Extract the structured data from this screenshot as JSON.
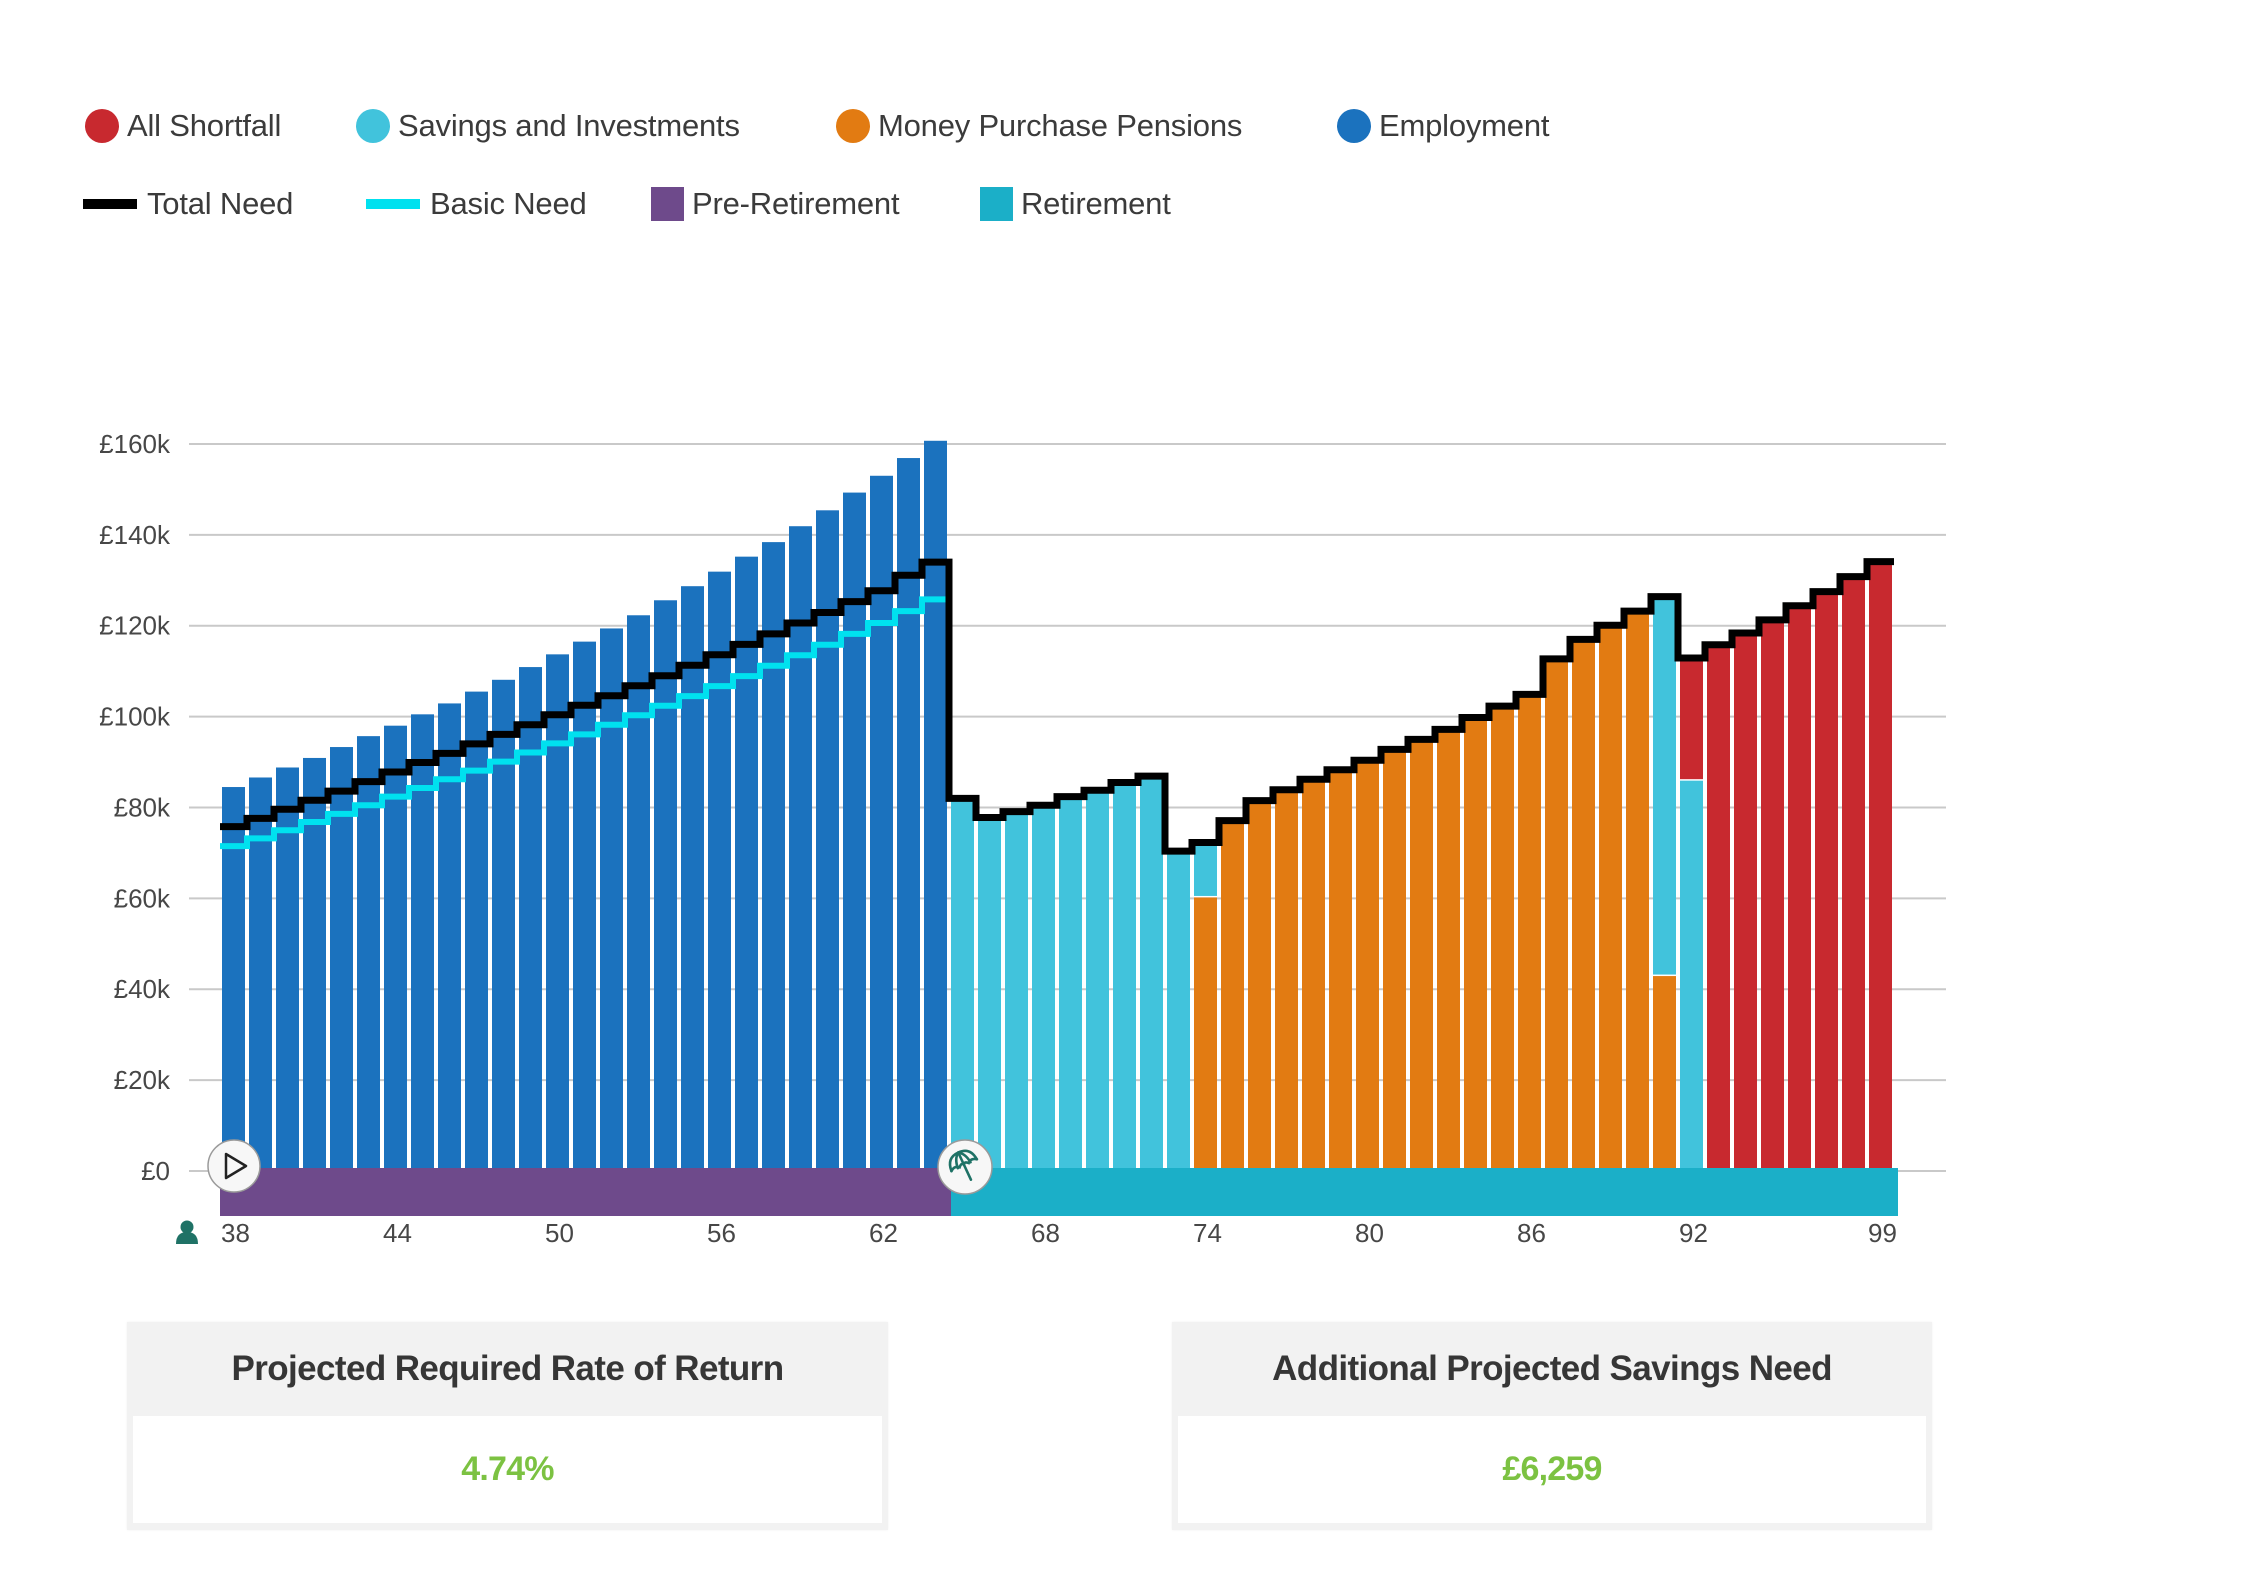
{
  "legend": {
    "row1": [
      {
        "label": "All Shortfall",
        "shape": "dot",
        "color": "#c8292f"
      },
      {
        "label": "Savings and Investments",
        "shape": "dot",
        "color": "#41c3dc"
      },
      {
        "label": "Money Purchase Pensions",
        "shape": "dot",
        "color": "#e27b12"
      },
      {
        "label": "Employment",
        "shape": "dot",
        "color": "#1b72be"
      }
    ],
    "row2": [
      {
        "label": "Total Need",
        "shape": "line",
        "color": "#000000"
      },
      {
        "label": "Basic Need",
        "shape": "line",
        "color": "#00e1ef"
      },
      {
        "label": "Pre-Retirement",
        "shape": "square",
        "color": "#6e4a8b"
      },
      {
        "label": "Retirement",
        "shape": "square",
        "color": "#1bafc8"
      }
    ]
  },
  "timeline": {
    "start_icon": "play-icon",
    "retirement_icon": "umbrella-icon",
    "person_icon": "person-icon",
    "pre_retirement": {
      "from_age": 38,
      "to_age": 64,
      "color": "#6e4a8b"
    },
    "retirement": {
      "from_age": 65,
      "to_age": 99,
      "color": "#1bafc8"
    }
  },
  "chart_data": {
    "type": "bar",
    "stacked": true,
    "title": "",
    "xlabel": "",
    "ylabel": "",
    "ylim": [
      0,
      160
    ],
    "y_unit": "£k",
    "y_ticks": [
      0,
      20,
      40,
      60,
      80,
      100,
      120,
      140,
      160
    ],
    "y_tick_labels": [
      "£0",
      "£20k",
      "£40k",
      "£60k",
      "£80k",
      "£100k",
      "£120k",
      "£140k",
      "£160k"
    ],
    "x_ticks": [
      38,
      44,
      50,
      56,
      62,
      68,
      74,
      80,
      86,
      92,
      99
    ],
    "grid": true,
    "legend_position": "top-left",
    "ages": [
      38,
      39,
      40,
      41,
      42,
      43,
      44,
      45,
      46,
      47,
      48,
      49,
      50,
      51,
      52,
      53,
      54,
      55,
      56,
      57,
      58,
      59,
      60,
      61,
      62,
      63,
      64,
      65,
      66,
      67,
      68,
      69,
      70,
      71,
      72,
      73,
      74,
      75,
      76,
      77,
      78,
      79,
      80,
      81,
      82,
      83,
      84,
      85,
      86,
      87,
      88,
      89,
      90,
      91,
      92,
      93,
      94,
      95,
      96,
      97,
      98,
      99
    ],
    "series": [
      {
        "name": "Employment",
        "color": "#1b72be",
        "values": [
          84.5,
          86.6,
          88.8,
          90.9,
          93.3,
          95.7,
          98.0,
          100.5,
          102.9,
          105.5,
          108.1,
          110.9,
          113.7,
          116.5,
          119.4,
          122.3,
          125.6,
          128.7,
          131.9,
          135.2,
          138.4,
          141.9,
          145.4,
          149.3,
          153.0,
          156.9,
          160.7,
          0,
          0,
          0,
          0,
          0,
          0,
          0,
          0,
          0,
          0,
          0,
          0,
          0,
          0,
          0,
          0,
          0,
          0,
          0,
          0,
          0,
          0,
          0,
          0,
          0,
          0,
          0,
          0,
          0,
          0,
          0,
          0,
          0,
          0,
          0
        ]
      },
      {
        "name": "Money Purchase Pensions",
        "color": "#e27b12",
        "values": [
          0,
          0,
          0,
          0,
          0,
          0,
          0,
          0,
          0,
          0,
          0,
          0,
          0,
          0,
          0,
          0,
          0,
          0,
          0,
          0,
          0,
          0,
          0,
          0,
          0,
          0,
          0,
          0,
          0,
          0,
          0,
          0,
          0,
          0,
          0,
          0,
          60.2,
          77.1,
          81.5,
          83.9,
          86.2,
          88.3,
          90.4,
          92.8,
          95.0,
          97.2,
          99.8,
          102.3,
          104.9,
          112.7,
          117.0,
          120.1,
          123.2,
          42.9,
          0,
          0,
          0,
          0,
          0,
          0,
          0,
          0
        ]
      },
      {
        "name": "Savings and Investments",
        "color": "#41c3dc",
        "values": [
          0,
          0,
          0,
          0,
          0,
          0,
          0,
          0,
          0,
          0,
          0,
          0,
          0,
          0,
          0,
          0,
          0,
          0,
          0,
          0,
          0,
          0,
          0,
          0,
          0,
          0,
          0,
          82.0,
          77.8,
          79.1,
          80.5,
          82.4,
          83.8,
          85.5,
          86.9,
          70.4,
          12.1,
          0,
          0,
          0,
          0,
          0,
          0,
          0,
          0,
          0,
          0,
          0,
          0,
          0,
          0,
          0,
          0,
          83.5,
          85.9,
          0,
          0,
          0,
          0,
          0,
          0,
          0
        ]
      },
      {
        "name": "All Shortfall",
        "color": "#c8292f",
        "values": [
          0,
          0,
          0,
          0,
          0,
          0,
          0,
          0,
          0,
          0,
          0,
          0,
          0,
          0,
          0,
          0,
          0,
          0,
          0,
          0,
          0,
          0,
          0,
          0,
          0,
          0,
          0,
          0,
          0,
          0,
          0,
          0,
          0,
          0,
          0,
          0,
          0,
          0,
          0,
          0,
          0,
          0,
          0,
          0,
          0,
          0,
          0,
          0,
          0,
          0,
          0,
          0,
          0,
          0,
          27.0,
          115.8,
          118.4,
          121.3,
          124.4,
          127.5,
          130.8,
          134.1
        ]
      }
    ],
    "lines": [
      {
        "name": "Total Need",
        "color": "#000000",
        "values": [
          75.8,
          77.6,
          79.6,
          81.6,
          83.6,
          85.7,
          87.8,
          89.9,
          91.9,
          94.0,
          96.1,
          98.2,
          100.4,
          102.5,
          104.6,
          106.8,
          109.0,
          111.3,
          113.6,
          115.9,
          118.2,
          120.6,
          122.9,
          125.3,
          127.7,
          131.1,
          134.0,
          82.0,
          77.8,
          79.1,
          80.5,
          82.4,
          83.8,
          85.5,
          86.9,
          70.4,
          72.3,
          77.1,
          81.5,
          83.9,
          86.2,
          88.3,
          90.4,
          92.8,
          95.0,
          97.2,
          99.8,
          102.3,
          104.9,
          112.7,
          117.0,
          120.1,
          123.2,
          126.4,
          112.9,
          115.8,
          118.4,
          121.3,
          124.4,
          127.5,
          130.8,
          134.1
        ]
      },
      {
        "name": "Basic Need",
        "color": "#00e1ef",
        "values": [
          71.5,
          73.2,
          75.0,
          76.8,
          78.6,
          80.5,
          82.4,
          84.3,
          86.2,
          88.1,
          90.1,
          92.1,
          94.1,
          96.1,
          98.2,
          100.3,
          102.4,
          104.5,
          106.7,
          108.9,
          111.2,
          113.5,
          115.8,
          118.2,
          120.6,
          123.2,
          125.8,
          null,
          null,
          null,
          null,
          null,
          null,
          null,
          null,
          null,
          null,
          null,
          null,
          null,
          null,
          null,
          null,
          null,
          null,
          null,
          null,
          null,
          null,
          null,
          null,
          null,
          null,
          null,
          null,
          null,
          null,
          null,
          null,
          null,
          null,
          null
        ]
      }
    ]
  },
  "cards": [
    {
      "title": "Projected Required Rate of Return",
      "value": "4.74%",
      "value_color": "#7cc242"
    },
    {
      "title": "Additional Projected Savings Need",
      "value": "£6,259",
      "value_color": "#7cc242"
    }
  ]
}
